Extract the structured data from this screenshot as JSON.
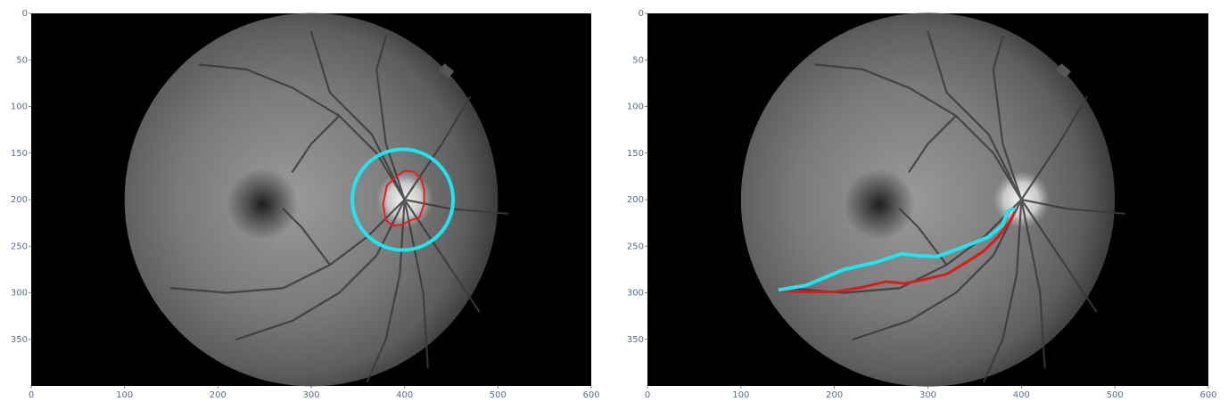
{
  "colors": {
    "optic_cup_contour": "#e81c1c",
    "optic_disc_circle": "#22e3f0",
    "vessel_line_red": "#d81c1c",
    "vessel_line_cyan": "#22e3f0",
    "background": "#000000",
    "tick_label": "#5b6d86"
  },
  "panels": [
    {
      "name": "left",
      "xlim": [
        0,
        600
      ],
      "ylim": [
        400,
        0
      ],
      "xticks": [
        0,
        100,
        200,
        300,
        400,
        500,
        600
      ],
      "yticks": [
        0,
        50,
        100,
        150,
        200,
        250,
        300,
        350
      ],
      "image": "grayscale retinal fundus photograph",
      "overlays": {
        "optic_disc_circle": {
          "cx": 398,
          "cy": 200,
          "r": 54,
          "color": "cyan"
        },
        "optic_cup_contour": {
          "color": "red",
          "points": [
            [
              377,
              205
            ],
            [
              381,
              185
            ],
            [
              390,
              176
            ],
            [
              400,
              169
            ],
            [
              410,
              170
            ],
            [
              418,
              178
            ],
            [
              421,
              190
            ],
            [
              421,
              205
            ],
            [
              416,
              219
            ],
            [
              407,
              222
            ],
            [
              397,
              227
            ],
            [
              387,
              228
            ],
            [
              380,
              222
            ]
          ]
        }
      }
    },
    {
      "name": "right",
      "xlim": [
        0,
        600
      ],
      "ylim": [
        400,
        0
      ],
      "xticks": [
        0,
        100,
        200,
        300,
        400,
        500,
        600
      ],
      "yticks": [
        0,
        50,
        100,
        150,
        200,
        250,
        300,
        350
      ],
      "image": "grayscale retinal fundus photograph",
      "overlays": {
        "cyan_line": {
          "color": "cyan",
          "points": [
            [
              140,
              297
            ],
            [
              170,
              292
            ],
            [
              210,
              275
            ],
            [
              245,
              267
            ],
            [
              272,
              258
            ],
            [
              288,
              260
            ],
            [
              310,
              261
            ],
            [
              340,
              250
            ],
            [
              365,
              240
            ],
            [
              380,
              227
            ],
            [
              385,
              213
            ],
            [
              390,
              210
            ],
            [
              393,
              211
            ]
          ]
        },
        "red_line": {
          "color": "red",
          "points": [
            [
              140,
              298
            ],
            [
              170,
              299
            ],
            [
              200,
              299
            ],
            [
              230,
              294
            ],
            [
              255,
              288
            ],
            [
              275,
              290
            ],
            [
              295,
              286
            ],
            [
              320,
              280
            ],
            [
              340,
              268
            ],
            [
              360,
              255
            ],
            [
              375,
              240
            ],
            [
              388,
              223
            ],
            [
              393,
              213
            ]
          ]
        }
      }
    }
  ]
}
